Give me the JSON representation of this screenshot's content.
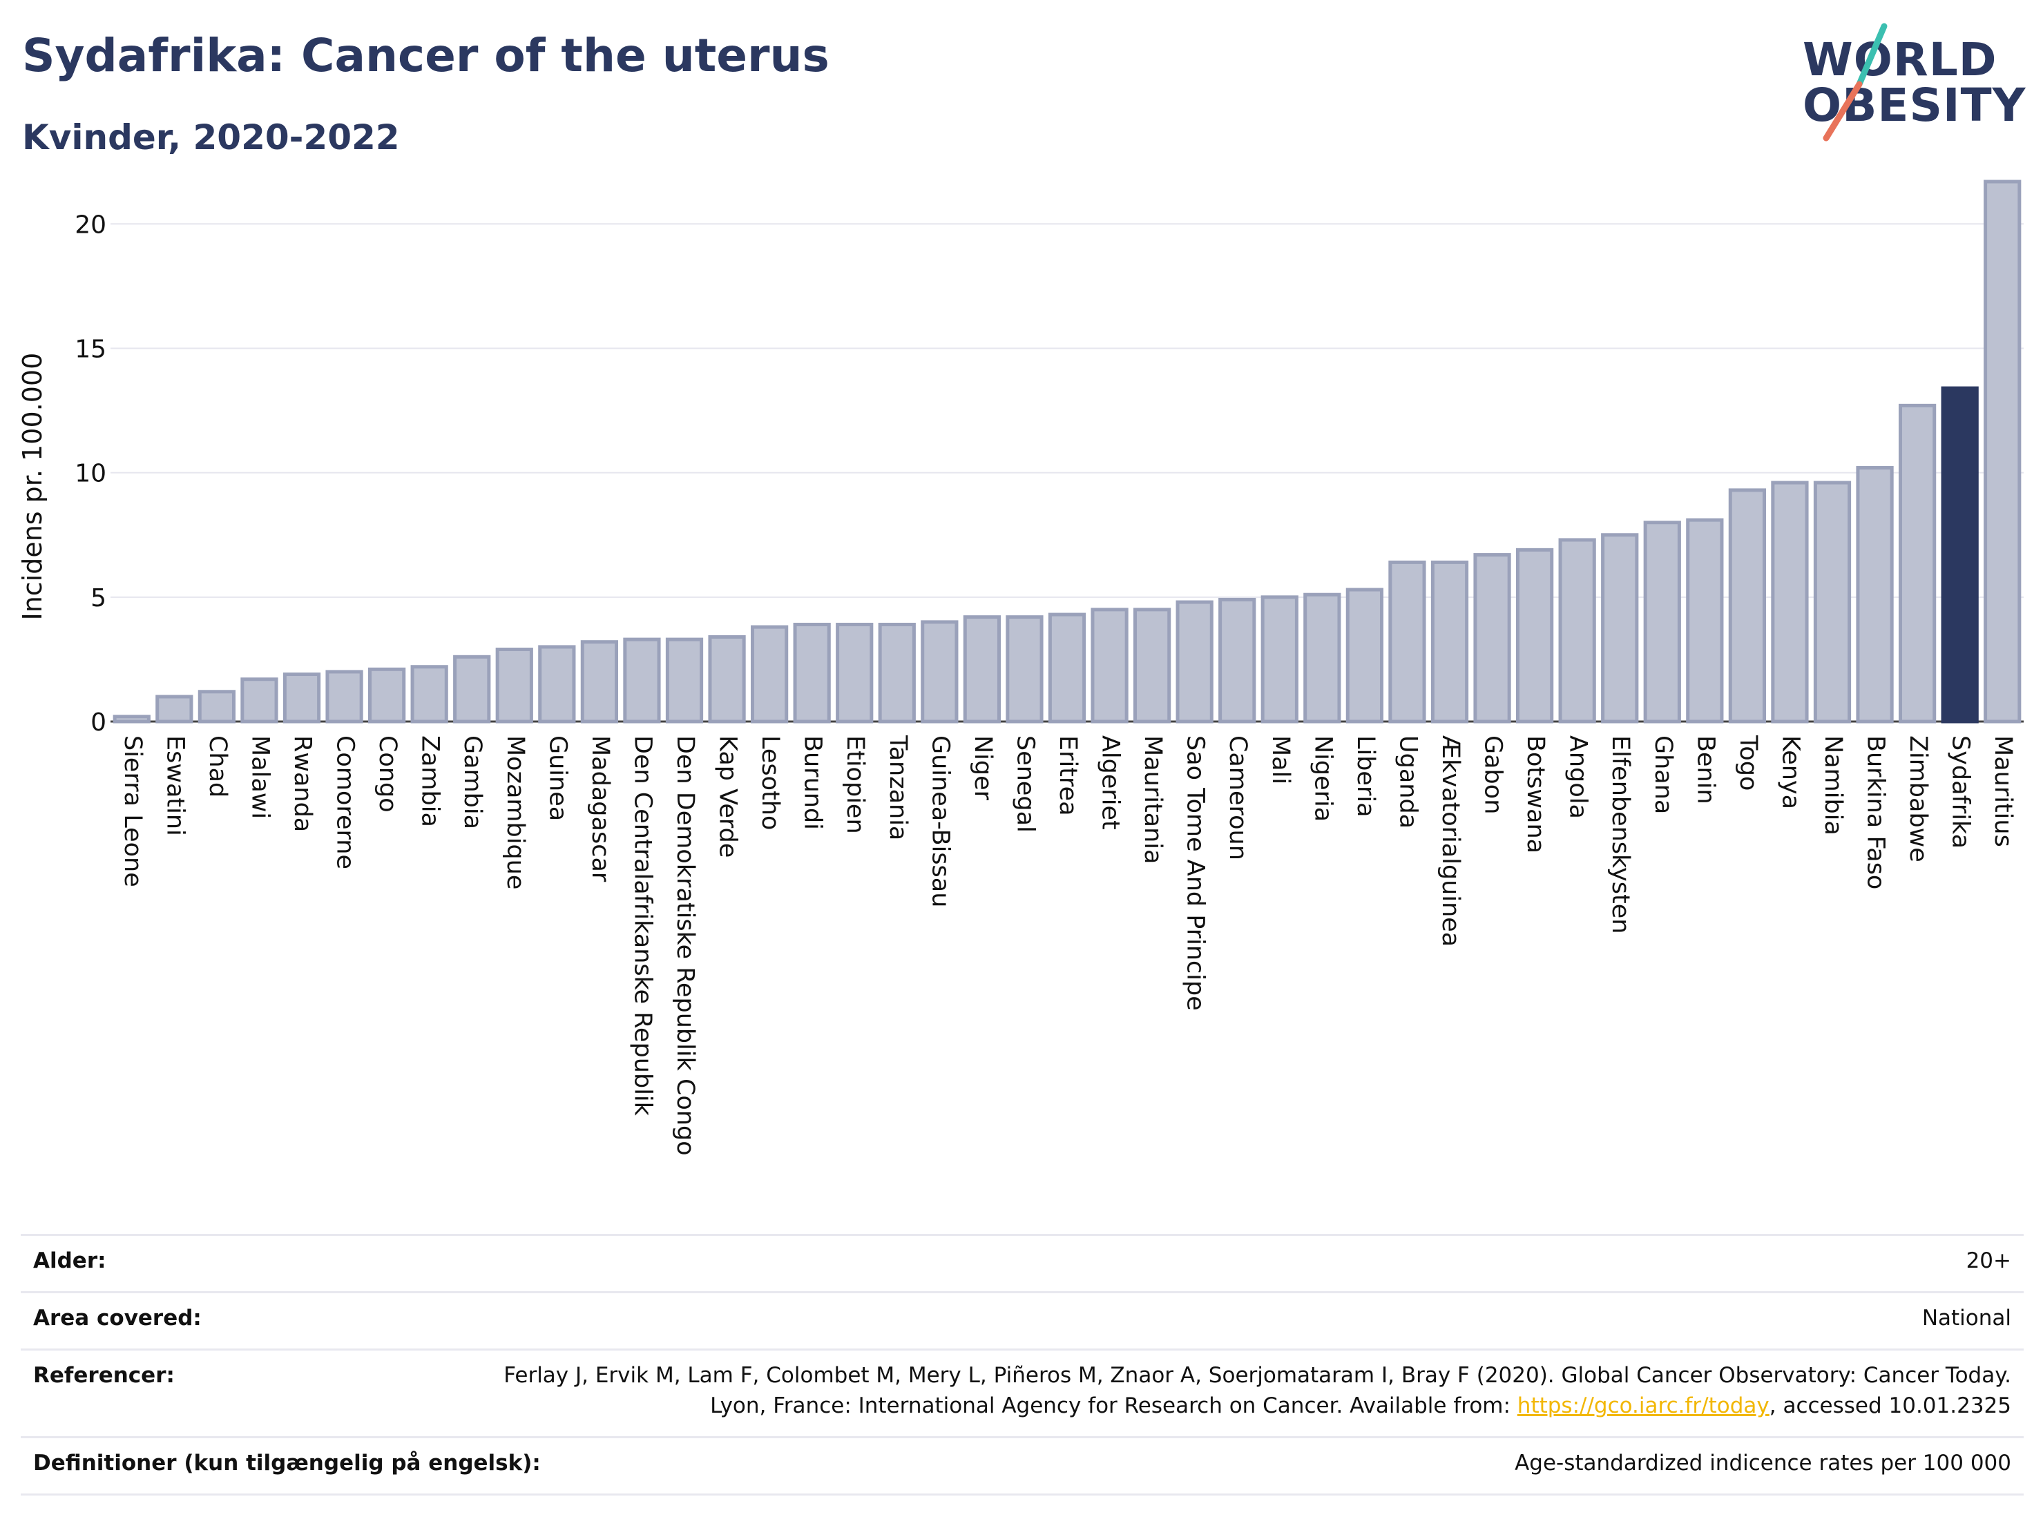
{
  "header": {
    "title": "Sydafrika: Cancer of the uterus",
    "subtitle": "Kvinder, 2020-2022"
  },
  "logo": {
    "line1": "WORLD",
    "line2": "OBESITY",
    "colors": {
      "text": "#2b3860",
      "teal": "#3bbfb0",
      "coral": "#e8735a"
    }
  },
  "chart_data": {
    "type": "bar",
    "title": "",
    "xlabel": "",
    "ylabel": "Incidens pr. 100.000",
    "ylim": [
      0,
      22.2
    ],
    "yticks": [
      0,
      5,
      10,
      15,
      20
    ],
    "grid": true,
    "highlight": "Sydafrika",
    "colors": {
      "bar": "#bcc1d1",
      "bar_edge": "#9aa1ba",
      "highlight": "#2b3860"
    },
    "categories": [
      "Sierra Leone",
      "Eswatini",
      "Chad",
      "Malawi",
      "Rwanda",
      "Comorerne",
      "Congo",
      "Zambia",
      "Gambia",
      "Mozambique",
      "Guinea",
      "Madagascar",
      "Den Centralafrikanske Republik",
      "Den Demokratiske Republik Congo",
      "Kap Verde",
      "Lesotho",
      "Burundi",
      "Etiopien",
      "Tanzania",
      "Guinea-Bissau",
      "Niger",
      "Senegal",
      "Eritrea",
      "Algeriet",
      "Mauritania",
      "Sao Tome And Principe",
      "Cameroun",
      "Mali",
      "Nigeria",
      "Liberia",
      "Uganda",
      "Ækvatorialguinea",
      "Gabon",
      "Botswana",
      "Angola",
      "Elfenbenskysten",
      "Ghana",
      "Benin",
      "Togo",
      "Kenya",
      "Namibia",
      "Burkina Faso",
      "Zimbabwe",
      "Sydafrika",
      "Mauritius"
    ],
    "values": [
      0.2,
      1.0,
      1.2,
      1.7,
      1.9,
      2.0,
      2.1,
      2.2,
      2.6,
      2.9,
      3.0,
      3.2,
      3.3,
      3.3,
      3.4,
      3.8,
      3.9,
      3.9,
      3.9,
      4.0,
      4.2,
      4.2,
      4.3,
      4.5,
      4.5,
      4.8,
      4.9,
      5.0,
      5.1,
      5.3,
      6.4,
      6.4,
      6.7,
      6.9,
      7.3,
      7.5,
      8.0,
      8.1,
      9.3,
      9.6,
      9.6,
      10.2,
      12.7,
      13.4,
      21.7
    ]
  },
  "meta": {
    "age_label": "Alder:",
    "age_value": "20+",
    "area_label": "Area covered:",
    "area_value": "National",
    "ref_label": "Referencer:",
    "ref_text1": "Ferlay J, Ervik M, Lam F, Colombet M, Mery L, Piñeros M, Znaor A, Soerjomataram I, Bray F (2020). Global Cancer Observatory: Cancer Today. Lyon, France: International Agency for Research on Cancer. Available from: ",
    "ref_link": "https://gco.iarc.fr/today",
    "ref_text2": ", accessed 10.01.2325",
    "def_label": "Definitioner (kun tilgængelig på engelsk):",
    "def_value": "Age-standardized indicence rates per 100 000"
  }
}
